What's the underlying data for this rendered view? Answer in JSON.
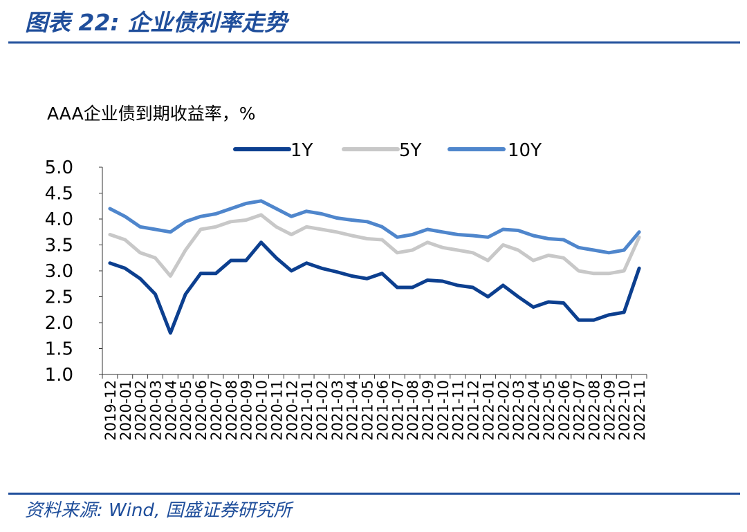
{
  "header": {
    "title": "图表 22:  企业债利率走势"
  },
  "footer": {
    "source": "资料来源:  Wind,  国盛证券研究所"
  },
  "colors": {
    "accent": "#1f4e9b",
    "y1": "#0c3f8f",
    "y5": "#c8c8c8",
    "y10": "#4f86cc"
  },
  "chart_data": {
    "type": "line",
    "ylabel": "AAA企业债到期收益率，%",
    "ylim": [
      1.0,
      5.0
    ],
    "yticks": [
      "5.0",
      "4.5",
      "4.0",
      "3.5",
      "3.0",
      "2.5",
      "2.0",
      "1.5",
      "1.0"
    ],
    "categories": [
      "2019-12",
      "2020-01",
      "2020-02",
      "2020-03",
      "2020-04",
      "2020-05",
      "2020-06",
      "2020-07",
      "2020-08",
      "2020-09",
      "2020-10",
      "2020-11",
      "2020-12",
      "2021-01",
      "2021-02",
      "2021-03",
      "2021-04",
      "2021-05",
      "2021-06",
      "2021-07",
      "2021-08",
      "2021-09",
      "2021-10",
      "2021-11",
      "2021-12",
      "2022-01",
      "2022-02",
      "2022-03",
      "2022-04",
      "2022-05",
      "2022-06",
      "2022-07",
      "2022-08",
      "2022-09",
      "2022-10",
      "2022-11"
    ],
    "legend_position": "top",
    "grid": false,
    "series": [
      {
        "name": "1Y",
        "color": "#0c3f8f",
        "values": [
          3.15,
          3.05,
          2.85,
          2.55,
          1.8,
          2.55,
          2.95,
          2.95,
          3.2,
          3.2,
          3.55,
          3.25,
          3.0,
          3.15,
          3.05,
          2.98,
          2.9,
          2.85,
          2.95,
          2.68,
          2.68,
          2.82,
          2.8,
          2.72,
          2.68,
          2.5,
          2.72,
          2.5,
          2.3,
          2.4,
          2.38,
          2.05,
          2.05,
          2.15,
          2.2,
          3.05
        ]
      },
      {
        "name": "5Y",
        "color": "#c8c8c8",
        "values": [
          3.7,
          3.6,
          3.35,
          3.25,
          2.9,
          3.4,
          3.8,
          3.85,
          3.95,
          3.98,
          4.08,
          3.85,
          3.7,
          3.85,
          3.8,
          3.75,
          3.68,
          3.62,
          3.6,
          3.35,
          3.4,
          3.55,
          3.45,
          3.4,
          3.35,
          3.2,
          3.5,
          3.4,
          3.2,
          3.3,
          3.25,
          3.0,
          2.95,
          2.95,
          3.0,
          3.65
        ]
      },
      {
        "name": "10Y",
        "color": "#4f86cc",
        "values": [
          4.2,
          4.05,
          3.85,
          3.8,
          3.75,
          3.95,
          4.05,
          4.1,
          4.2,
          4.3,
          4.35,
          4.2,
          4.05,
          4.15,
          4.1,
          4.02,
          3.98,
          3.95,
          3.85,
          3.65,
          3.7,
          3.8,
          3.75,
          3.7,
          3.68,
          3.65,
          3.8,
          3.78,
          3.68,
          3.62,
          3.6,
          3.45,
          3.4,
          3.35,
          3.4,
          3.75
        ]
      }
    ]
  }
}
